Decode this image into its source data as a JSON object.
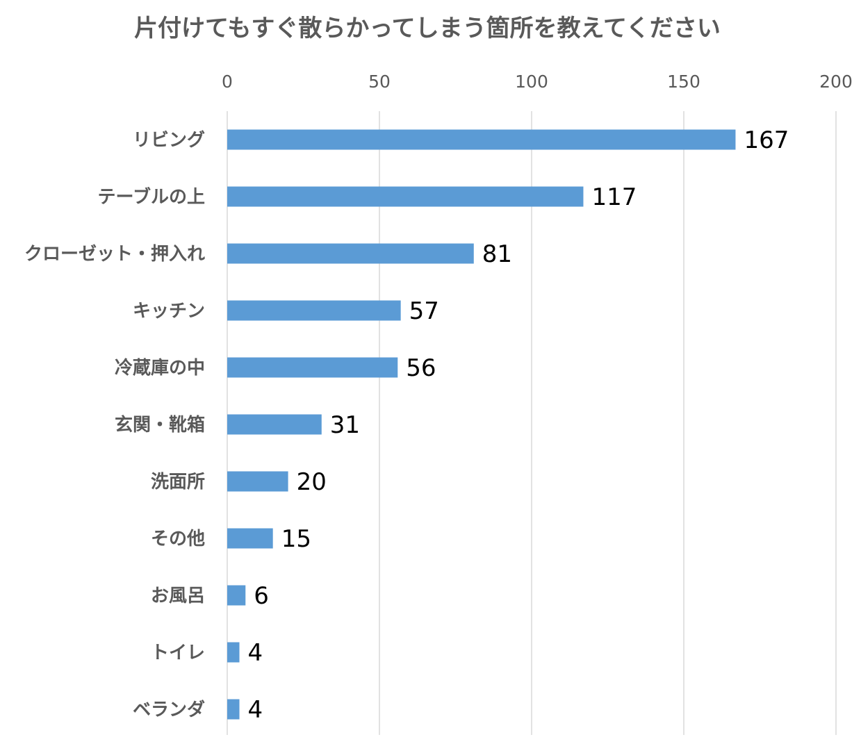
{
  "chart_data": {
    "type": "bar",
    "orientation": "horizontal",
    "title": "片付けてもすぐ散らかってしまう箇所を教えてください",
    "xlabel": "",
    "ylabel": "",
    "xlim": [
      0,
      200
    ],
    "x_ticks": [
      0,
      50,
      100,
      150,
      200
    ],
    "x_tick_labels": [
      "0",
      "50",
      "100",
      "150",
      "200"
    ],
    "grid": true,
    "legend": "none",
    "categories": [
      "リビング",
      "テーブルの上",
      "クローゼット・押入れ",
      "キッチン",
      "冷蔵庫の中",
      "玄関・靴箱",
      "洗面所",
      "その他",
      "お風呂",
      "トイレ",
      "ベランダ"
    ],
    "values": [
      167,
      117,
      81,
      57,
      56,
      31,
      20,
      15,
      6,
      4,
      4
    ],
    "data_labels": [
      "167",
      "117",
      "81",
      "57",
      "56",
      "31",
      "20",
      "15",
      "6",
      "4",
      "4"
    ],
    "bar_color": "#5b9bd5"
  }
}
